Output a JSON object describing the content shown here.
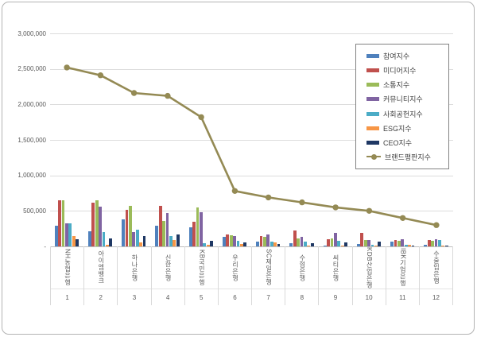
{
  "chart_data": {
    "type": "bar",
    "subtype": "grouped-bars-with-line-overlay",
    "title": "",
    "xlabel": "",
    "ylabel": "",
    "categories": [
      "NH농협은행",
      "아이엠뱅크",
      "하나은행",
      "신한은행",
      "KB국민은행",
      "우리은행",
      "SC제일은행",
      "수협은행",
      "씨티은행",
      "KDB산업은행",
      "IBK기업은행",
      "수출입은행"
    ],
    "category_numbers": [
      "1",
      "2",
      "3",
      "4",
      "5",
      "6",
      "7",
      "8",
      "9",
      "10",
      "11",
      "12"
    ],
    "series": [
      {
        "name": "참여지수",
        "type": "bar",
        "color": "#4F81BD",
        "values": [
          290000,
          215000,
          385000,
          290000,
          270000,
          130000,
          65000,
          45000,
          12000,
          30000,
          70000,
          18000
        ]
      },
      {
        "name": "미디어지수",
        "type": "bar",
        "color": "#C0504D",
        "values": [
          655000,
          615000,
          515000,
          575000,
          350000,
          165000,
          150000,
          225000,
          105000,
          195000,
          90000,
          88000
        ]
      },
      {
        "name": "소통지수",
        "type": "bar",
        "color": "#9BBB59",
        "values": [
          645000,
          650000,
          575000,
          355000,
          550000,
          155000,
          140000,
          110000,
          115000,
          90000,
          82000,
          80000
        ]
      },
      {
        "name": "커뮤니티지수",
        "type": "bar",
        "color": "#8064A2",
        "values": [
          330000,
          555000,
          205000,
          465000,
          485000,
          145000,
          170000,
          130000,
          190000,
          85000,
          98000,
          100000
        ]
      },
      {
        "name": "사회공헌지수",
        "type": "bar",
        "color": "#4BACC6",
        "values": [
          320000,
          205000,
          235000,
          145000,
          45000,
          75000,
          70000,
          70000,
          75000,
          18000,
          28000,
          90000
        ]
      },
      {
        "name": "ESG지수",
        "type": "bar",
        "color": "#F79646",
        "values": [
          150000,
          25000,
          60000,
          95000,
          20000,
          35000,
          60000,
          10000,
          8000,
          12000,
          18000,
          12000
        ]
      },
      {
        "name": "CEO지수",
        "type": "bar",
        "color": "#1F3864",
        "values": [
          105000,
          115000,
          145000,
          165000,
          80000,
          60000,
          38000,
          50000,
          55000,
          65000,
          12000,
          10000
        ]
      },
      {
        "name": "브랜드평판지수",
        "type": "line",
        "color": "#948A54",
        "values": [
          2520000,
          2410000,
          2160000,
          2120000,
          1820000,
          780000,
          690000,
          620000,
          550000,
          500000,
          400000,
          300000
        ]
      }
    ],
    "y_axis": {
      "min": 0,
      "max": 3000000,
      "tick_interval": 500000,
      "tick_labels": [
        "-",
        "500,000",
        "1,000,000",
        "1,500,000",
        "2,000,000",
        "2,500,000",
        "3,000,000"
      ]
    },
    "legend_position": "top-right-inside",
    "grid": true,
    "colors": {
      "gridline": "#dcdcdc",
      "axis_text": "#595959",
      "frame_border": "#b3b3b3",
      "legend_border": "#828282"
    }
  }
}
